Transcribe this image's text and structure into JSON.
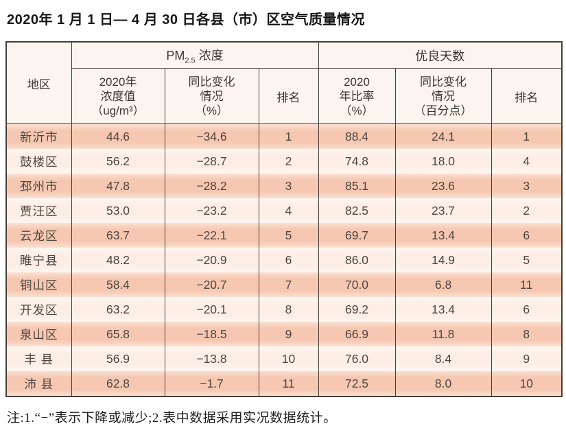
{
  "title": "2020年 1 月 1 日— 4 月 30 日各县（市）区空气质量情况",
  "colors": {
    "row_salmon": "#f6c8b1",
    "row_light": "#fdeee5",
    "header_bg": "#fcf5ef",
    "grid_border": "#443d38",
    "text": "#4e4641"
  },
  "table": {
    "header": {
      "region": "地区",
      "pm_group": {
        "prefix": "PM",
        "sub": "2.5",
        "label": "浓度"
      },
      "days_group": "优良天数",
      "pm_value": {
        "l1": "2020年",
        "l2": "浓度值",
        "l3": "（ug/m³）"
      },
      "pm_change": {
        "l1": "同比变化",
        "l2": "情况",
        "l3": "（%）"
      },
      "pm_rank": "排名",
      "ratio": {
        "l1": "2020",
        "l2": "年比率",
        "l3": "（%）"
      },
      "ratio_change": {
        "l1": "同比变化",
        "l2": "情况",
        "l3": "（百分点）"
      },
      "days_rank": "排名"
    },
    "rows": [
      [
        "新沂市",
        "44.6",
        "−34.6",
        "1",
        "88.4",
        "24.1",
        "1"
      ],
      [
        "鼓楼区",
        "56.2",
        "−28.7",
        "2",
        "74.8",
        "18.0",
        "4"
      ],
      [
        "邳州市",
        "47.8",
        "−28.2",
        "3",
        "85.1",
        "23.6",
        "3"
      ],
      [
        "贾汪区",
        "53.0",
        "−23.2",
        "4",
        "82.5",
        "23.7",
        "2"
      ],
      [
        "云龙区",
        "63.7",
        "−22.1",
        "5",
        "69.7",
        "13.4",
        "6"
      ],
      [
        "睢宁县",
        "48.2",
        "−20.9",
        "6",
        "86.0",
        "14.9",
        "5"
      ],
      [
        "铜山区",
        "58.4",
        "−20.7",
        "7",
        "70.0",
        "6.8",
        "11"
      ],
      [
        "开发区",
        "63.2",
        "−20.1",
        "8",
        "69.2",
        "13.4",
        "6"
      ],
      [
        "泉山区",
        "65.8",
        "−18.5",
        "9",
        "66.9",
        "11.8",
        "8"
      ],
      [
        "丰 县",
        "56.9",
        "−13.8",
        "10",
        "76.0",
        "8.4",
        "9"
      ],
      [
        "沛 县",
        "62.8",
        "−1.7",
        "11",
        "72.5",
        "8.0",
        "10"
      ]
    ]
  },
  "note": "注:1.“−”表示下降或减少;2.表中数据采用实况数据统计。"
}
